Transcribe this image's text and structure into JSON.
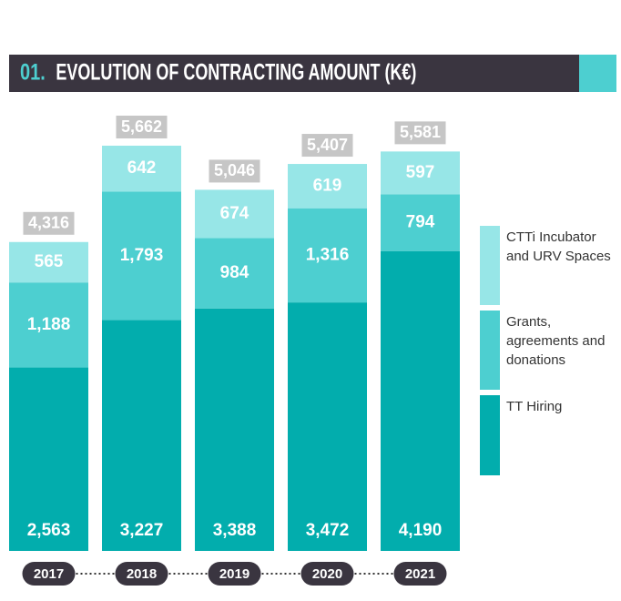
{
  "chart_data": {
    "type": "stacked_bar",
    "title_number": "01.",
    "title": "EVOLUTION OF CONTRACTING AMOUNT (K€)",
    "categories": [
      "2017",
      "2018",
      "2019",
      "2020",
      "2021"
    ],
    "series": [
      {
        "name": "TT Hiring",
        "color": "#02adad",
        "values": [
          2563,
          3227,
          3388,
          3472,
          4190
        ],
        "value_labels": [
          "2,563",
          "3,227",
          "3,388",
          "3,472",
          "4,190"
        ]
      },
      {
        "name": "Grants, agreements and donations",
        "color": "#4dcfd0",
        "values": [
          1188,
          1793,
          984,
          1316,
          794
        ],
        "value_labels": [
          "1,188",
          "1,793",
          "984",
          "1,316",
          "794"
        ]
      },
      {
        "name": "CTTi Incubator and URV Spaces",
        "color": "#97e6e7",
        "values": [
          565,
          642,
          674,
          619,
          597
        ],
        "value_labels": [
          "565",
          "642",
          "674",
          "619",
          "597"
        ]
      }
    ],
    "totals": [
      4316,
      5662,
      5046,
      5407,
      5581
    ],
    "total_labels": [
      "4,316",
      "5,662",
      "5,046",
      "5,407",
      "5,581"
    ]
  }
}
